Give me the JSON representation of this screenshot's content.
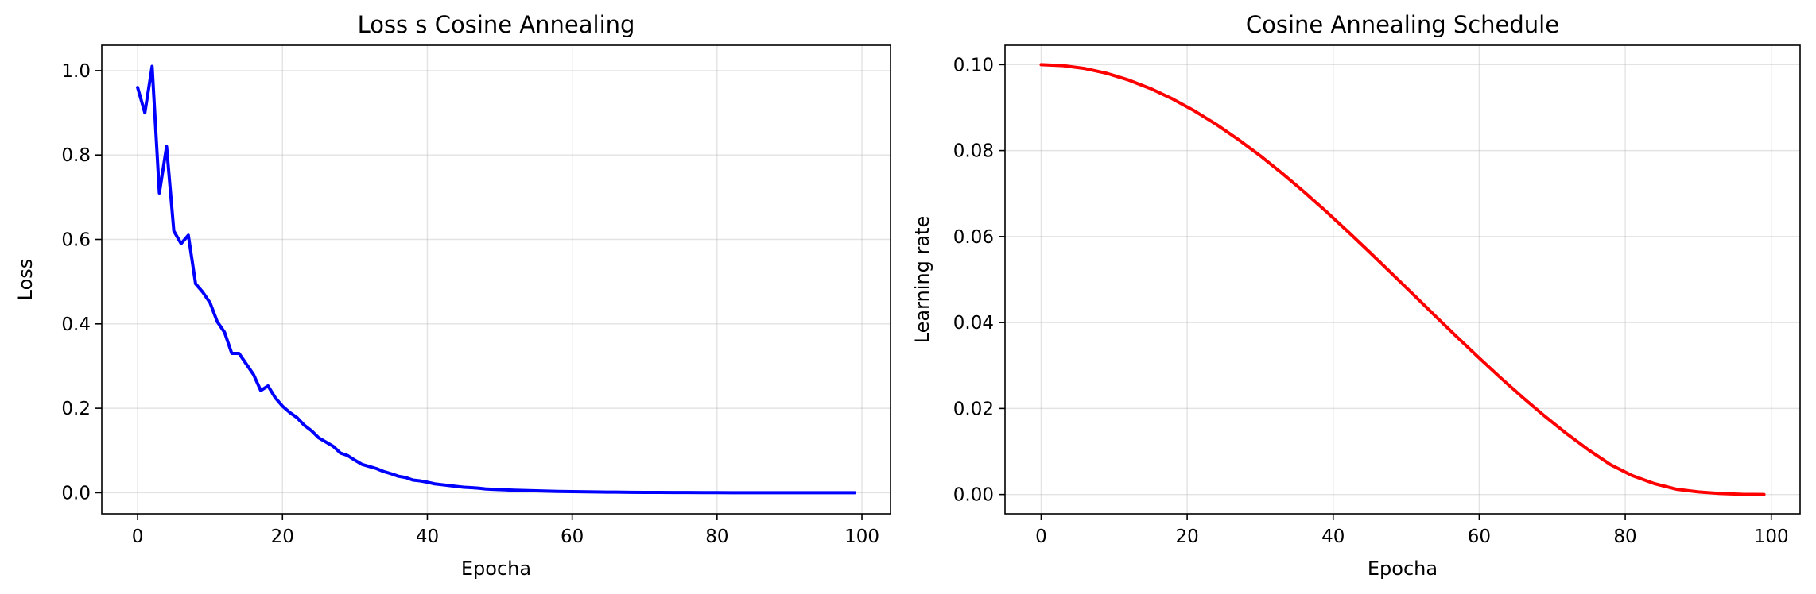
{
  "chart_data": [
    {
      "type": "line",
      "title": "Loss s Cosine Annealing",
      "xlabel": "Epocha",
      "ylabel": "Loss",
      "xlim": [
        -4.95,
        103.95
      ],
      "ylim": [
        -0.05,
        1.06
      ],
      "xticks": [
        0,
        20,
        40,
        60,
        80,
        100
      ],
      "yticks": [
        0.0,
        0.2,
        0.4,
        0.6,
        0.8,
        1.0
      ],
      "xtick_labels": [
        "0",
        "20",
        "40",
        "60",
        "80",
        "100"
      ],
      "ytick_labels": [
        "0.0",
        "0.2",
        "0.4",
        "0.6",
        "0.8",
        "1.0"
      ],
      "grid": true,
      "series": [
        {
          "color": "#0000ff",
          "x": [
            0,
            1,
            2,
            3,
            4,
            5,
            6,
            7,
            8,
            9,
            10,
            11,
            12,
            13,
            14,
            15,
            16,
            17,
            18,
            19,
            20,
            21,
            22,
            23,
            24,
            25,
            26,
            27,
            28,
            29,
            30,
            31,
            32,
            33,
            34,
            35,
            36,
            37,
            38,
            39,
            40,
            41,
            42,
            43,
            44,
            45,
            46,
            47,
            48,
            49,
            50,
            52,
            54,
            56,
            58,
            60,
            62,
            64,
            66,
            68,
            70,
            72,
            74,
            76,
            78,
            80,
            82,
            84,
            86,
            88,
            90,
            92,
            94,
            96,
            98,
            99
          ],
          "y": [
            0.96,
            0.9,
            1.01,
            0.71,
            0.82,
            0.62,
            0.59,
            0.61,
            0.495,
            0.475,
            0.45,
            0.405,
            0.38,
            0.33,
            0.33,
            0.305,
            0.28,
            0.242,
            0.253,
            0.225,
            0.205,
            0.19,
            0.178,
            0.16,
            0.147,
            0.13,
            0.12,
            0.11,
            0.094,
            0.088,
            0.077,
            0.067,
            0.062,
            0.057,
            0.05,
            0.045,
            0.039,
            0.036,
            0.03,
            0.028,
            0.025,
            0.021,
            0.019,
            0.017,
            0.015,
            0.013,
            0.012,
            0.011,
            0.009,
            0.008,
            0.0075,
            0.006,
            0.005,
            0.004,
            0.0032,
            0.0026,
            0.0021,
            0.0017,
            0.0014,
            0.0011,
            0.0009,
            0.0007,
            0.0006,
            0.0005,
            0.0004,
            0.0003,
            0.0002,
            0.0002,
            0.0001,
            0.0001,
            0.0001,
            0.0001,
            0.0,
            0.0,
            0.0,
            0.0
          ]
        }
      ]
    },
    {
      "type": "line",
      "title": "Cosine Annealing Schedule",
      "xlabel": "Epocha",
      "ylabel": "Learning rate",
      "xlim": [
        -4.95,
        103.95
      ],
      "ylim": [
        -0.0045,
        0.1045
      ],
      "xticks": [
        0,
        20,
        40,
        60,
        80,
        100
      ],
      "yticks": [
        0.0,
        0.02,
        0.04,
        0.06,
        0.08,
        0.1
      ],
      "xtick_labels": [
        "0",
        "20",
        "40",
        "60",
        "80",
        "100"
      ],
      "ytick_labels": [
        "0.00",
        "0.02",
        "0.04",
        "0.06",
        "0.08",
        "0.10"
      ],
      "grid": true,
      "series": [
        {
          "color": "#ff0000",
          "x": [
            0,
            3,
            6,
            9,
            12,
            15,
            18,
            21,
            24,
            27,
            30,
            33,
            36,
            39,
            42,
            45,
            48,
            51,
            54,
            57,
            60,
            63,
            66,
            69,
            72,
            75,
            78,
            81,
            84,
            87,
            90,
            93,
            96,
            99
          ],
          "y": [
            0.1,
            0.09977,
            0.09909,
            0.09797,
            0.0964,
            0.09441,
            0.09201,
            0.08923,
            0.08608,
            0.08259,
            0.0788,
            0.07472,
            0.07041,
            0.06588,
            0.06118,
            0.05635,
            0.05143,
            0.04647,
            0.0415,
            0.03658,
            0.03174,
            0.02703,
            0.0225,
            0.01818,
            0.01411,
            0.01034,
            0.00692,
            0.00436,
            0.00252,
            0.00123,
            0.00061,
            0.00023,
            5e-05,
            0.0
          ]
        }
      ]
    }
  ]
}
